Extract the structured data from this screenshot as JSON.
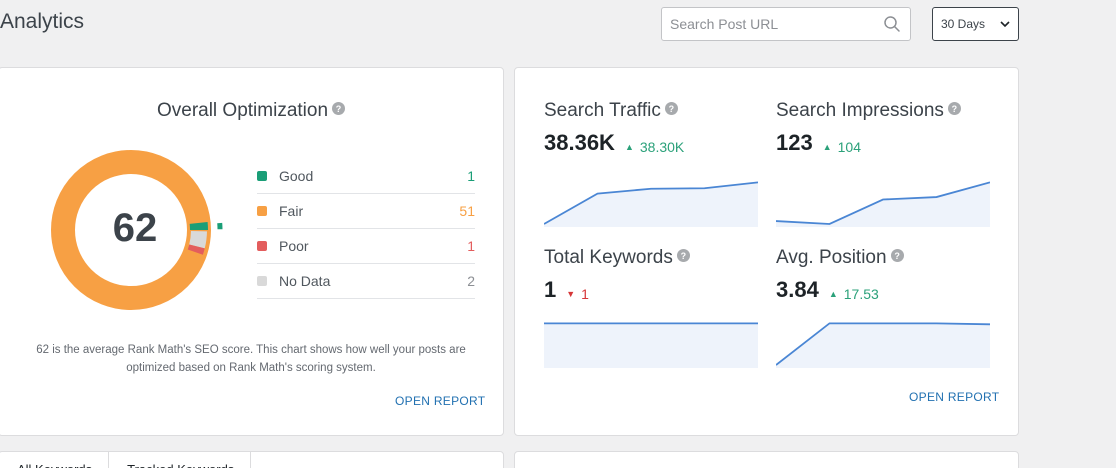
{
  "header": {
    "title": "Analytics",
    "search_placeholder": "Search Post URL",
    "range_label": "30 Days"
  },
  "optimization": {
    "title": "Overall Optimization",
    "score": "62",
    "legend": [
      {
        "label": "Good",
        "value": "1",
        "color": "#1a9e77"
      },
      {
        "label": "Fair",
        "value": "51",
        "color": "#f7a044"
      },
      {
        "label": "Poor",
        "value": "1",
        "color": "#e35d5d"
      },
      {
        "label": "No Data",
        "value": "2",
        "color": "#d9d9d9"
      }
    ],
    "description": "62 is the average Rank Math's SEO score. This chart shows how well your posts are optimized based on Rank Math's scoring system.",
    "open_report": "OPEN REPORT"
  },
  "stats": {
    "search_traffic": {
      "title": "Search Traffic",
      "value": "38.36K",
      "delta": "38.30K",
      "direction": "up",
      "trend": [
        0.0,
        0.62,
        0.72,
        0.73,
        0.85
      ]
    },
    "search_impressions": {
      "title": "Search Impressions",
      "value": "123",
      "delta": "104",
      "direction": "up",
      "trend": [
        0.06,
        0.0,
        0.5,
        0.55,
        0.85
      ]
    },
    "total_keywords": {
      "title": "Total Keywords",
      "value": "1",
      "delta": "1",
      "direction": "down",
      "trend": [
        0.85,
        0.85,
        0.85,
        0.85,
        0.85
      ]
    },
    "avg_position": {
      "title": "Avg. Position",
      "value": "3.84",
      "delta": "17.53",
      "direction": "up",
      "trend": [
        0.0,
        0.85,
        0.85,
        0.85,
        0.83
      ]
    },
    "open_report": "OPEN REPORT"
  },
  "tabs": [
    "All Keywords",
    "Tracked Keywords"
  ],
  "colors": {
    "accent": "#2271b1",
    "positive": "#2ba17a",
    "negative": "#d63638",
    "line": "#4a86d4"
  }
}
